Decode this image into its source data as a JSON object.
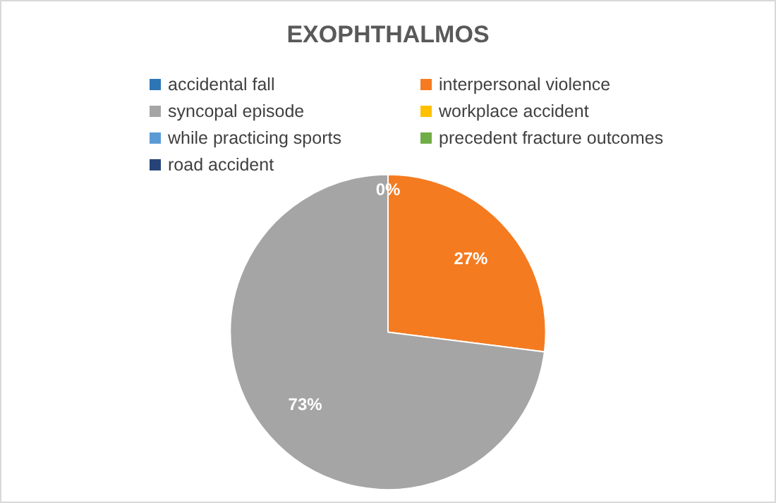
{
  "chart_data": {
    "type": "pie",
    "title": "EXOPHTHALMOS",
    "categories": [
      "accidental fall",
      "interpersonal violence",
      "syncopal episode",
      "workplace accident",
      "while practicing sports",
      "precedent fracture outcomes",
      "road accident"
    ],
    "values": [
      0,
      27,
      73,
      0,
      0,
      0,
      0
    ],
    "colors": [
      "#2e75b6",
      "#f47b20",
      "#a5a5a5",
      "#ffc000",
      "#5b9bd5",
      "#70ad47",
      "#264478"
    ],
    "value_labels": [
      "0%",
      "27%",
      "73%",
      null,
      null,
      null,
      null
    ],
    "legend": "top"
  }
}
